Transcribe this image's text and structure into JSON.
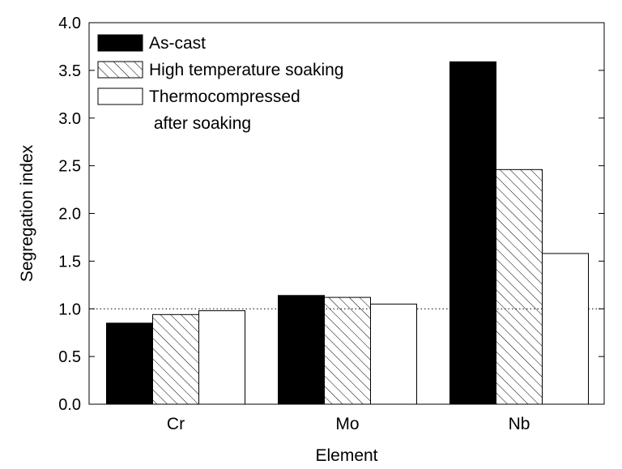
{
  "chart_data": {
    "type": "bar",
    "categories": [
      "Cr",
      "Mo",
      "Nb"
    ],
    "series": [
      {
        "name": "As-cast",
        "values": [
          0.85,
          1.14,
          3.59
        ],
        "fill": "solid-black"
      },
      {
        "name": "High temperature soaking",
        "values": [
          0.94,
          1.12,
          2.46
        ],
        "fill": "diagonal-hatch"
      },
      {
        "name": "Thermocompressed after soaking",
        "legend_lines": [
          "Thermocompressed",
          " after soaking"
        ],
        "values": [
          0.98,
          1.05,
          1.58
        ],
        "fill": "white"
      }
    ],
    "xlabel": "Element",
    "ylabel": "Segregation index",
    "ylim": [
      0.0,
      4.0
    ],
    "yticks": [
      "0.0",
      "0.5",
      "1.0",
      "1.5",
      "2.0",
      "2.5",
      "3.0",
      "3.5",
      "4.0"
    ],
    "reference_line": {
      "y": 1.0,
      "style": "dotted"
    },
    "legend_position": "top-left",
    "grid": false,
    "colors": {
      "bar_outline": "#000000",
      "solid": "#000000",
      "background": "#ffffff"
    }
  }
}
